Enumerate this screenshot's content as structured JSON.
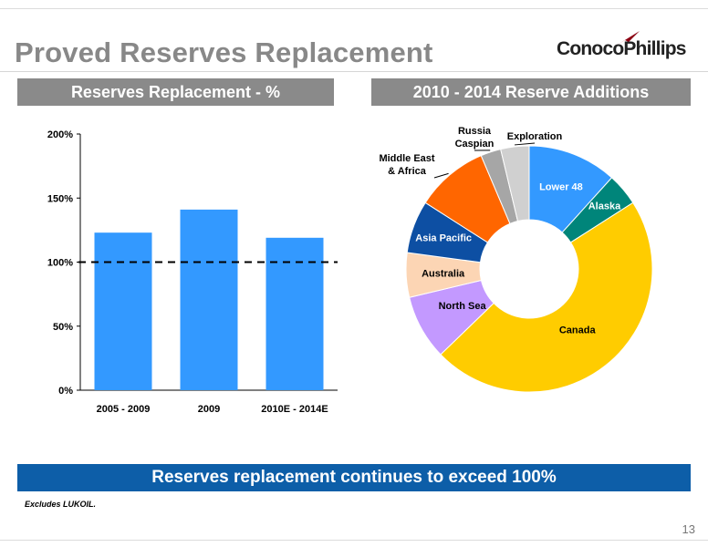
{
  "slide": {
    "title": "Proved Reserves Replacement",
    "company": "ConocoPhillips",
    "banner": "Reserves replacement continues to exceed 100%",
    "footnote": "Excludes LUKOIL.",
    "page_number": "13"
  },
  "colors": {
    "header_gray": "#8a8a8a",
    "banner_blue": "#0d5ea8",
    "bar_blue": "#3399ff",
    "logo_red": "#d0021b"
  },
  "chart_data": [
    {
      "type": "bar",
      "title": "Reserves Replacement - %",
      "categories": [
        "2005 - 2009",
        "2009",
        "2010E - 2014E"
      ],
      "values": [
        123,
        141,
        119
      ],
      "ylim": [
        0,
        200
      ],
      "yticks": [
        0,
        50,
        100,
        150,
        200
      ],
      "ytick_labels": [
        "0%",
        "50%",
        "100%",
        "150%",
        "200%"
      ],
      "reference_line": 100,
      "grid": false,
      "color": "#3399ff"
    },
    {
      "type": "pie",
      "title": "2010 - 2014 Reserve Additions",
      "donut": true,
      "slices": [
        {
          "label": "Lower 48",
          "value": 11,
          "color": "#3399ff"
        },
        {
          "label": "Alaska",
          "value": 4,
          "color": "#00857a"
        },
        {
          "label": "Canada",
          "value": 44,
          "color": "#ffcc00"
        },
        {
          "label": "North Sea",
          "value": 8,
          "color": "#c399ff"
        },
        {
          "label": "Australia",
          "value": 5.5,
          "color": "#fcd5b4"
        },
        {
          "label": "Asia Pacific",
          "value": 6.5,
          "color": "#0d4fa3"
        },
        {
          "label": "Middle East & Africa",
          "value": 9,
          "color": "#ff6600"
        },
        {
          "label": "Russia Caspian",
          "value": 2.5,
          "color": "#a6a6a6"
        },
        {
          "label": "Exploration",
          "value": 3.5,
          "color": "#d0d0d0"
        }
      ]
    }
  ]
}
